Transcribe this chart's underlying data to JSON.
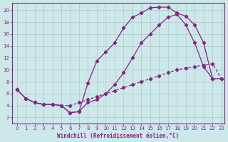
{
  "xlabel": "Windchill (Refroidissement éolien,°C)",
  "bg_color": "#cce8e8",
  "grid_color": "#aacccc",
  "line_color": "#882288",
  "xlim_min": -0.5,
  "xlim_max": 23.3,
  "ylim_min": 1.0,
  "ylim_max": 21.2,
  "yticks": [
    2,
    4,
    6,
    8,
    10,
    12,
    14,
    16,
    18,
    20
  ],
  "xticks": [
    0,
    1,
    2,
    3,
    4,
    5,
    6,
    7,
    8,
    9,
    10,
    11,
    12,
    13,
    14,
    15,
    16,
    17,
    18,
    19,
    20,
    21,
    22,
    23
  ],
  "line1_x": [
    0,
    1,
    2,
    3,
    4,
    5,
    6,
    7,
    8,
    9,
    10,
    11,
    12,
    13,
    14,
    15,
    16,
    17,
    18,
    19,
    20,
    21,
    22
  ],
  "line1_y": [
    6.7,
    5.2,
    4.5,
    4.2,
    4.2,
    4.0,
    2.8,
    3.0,
    7.8,
    11.5,
    13.0,
    14.5,
    17.0,
    18.8,
    19.5,
    20.4,
    20.5,
    20.5,
    19.5,
    19.0,
    17.5,
    14.5,
    8.5
  ],
  "line2_x": [
    0,
    1,
    2,
    3,
    4,
    5,
    6,
    7,
    8,
    9,
    10,
    11,
    12,
    13,
    14,
    15,
    16,
    17,
    18,
    19,
    20,
    21,
    22,
    23
  ],
  "line2_y": [
    6.7,
    5.2,
    4.5,
    4.2,
    4.2,
    4.0,
    2.8,
    3.0,
    4.5,
    5.0,
    6.0,
    7.5,
    9.5,
    12.0,
    14.5,
    16.0,
    17.5,
    18.8,
    19.3,
    17.5,
    14.5,
    10.5,
    8.5,
    8.5
  ],
  "line3_x": [
    0,
    1,
    2,
    3,
    4,
    5,
    6,
    7,
    8,
    9,
    10,
    11,
    12,
    13,
    14,
    15,
    16,
    17,
    18,
    19,
    20,
    21,
    22,
    23
  ],
  "line3_y": [
    6.7,
    5.2,
    4.5,
    4.2,
    4.2,
    4.0,
    4.0,
    4.5,
    5.0,
    5.5,
    6.0,
    6.5,
    7.0,
    7.5,
    8.0,
    8.5,
    9.0,
    9.5,
    10.0,
    10.3,
    10.5,
    10.8,
    11.0,
    8.5
  ]
}
